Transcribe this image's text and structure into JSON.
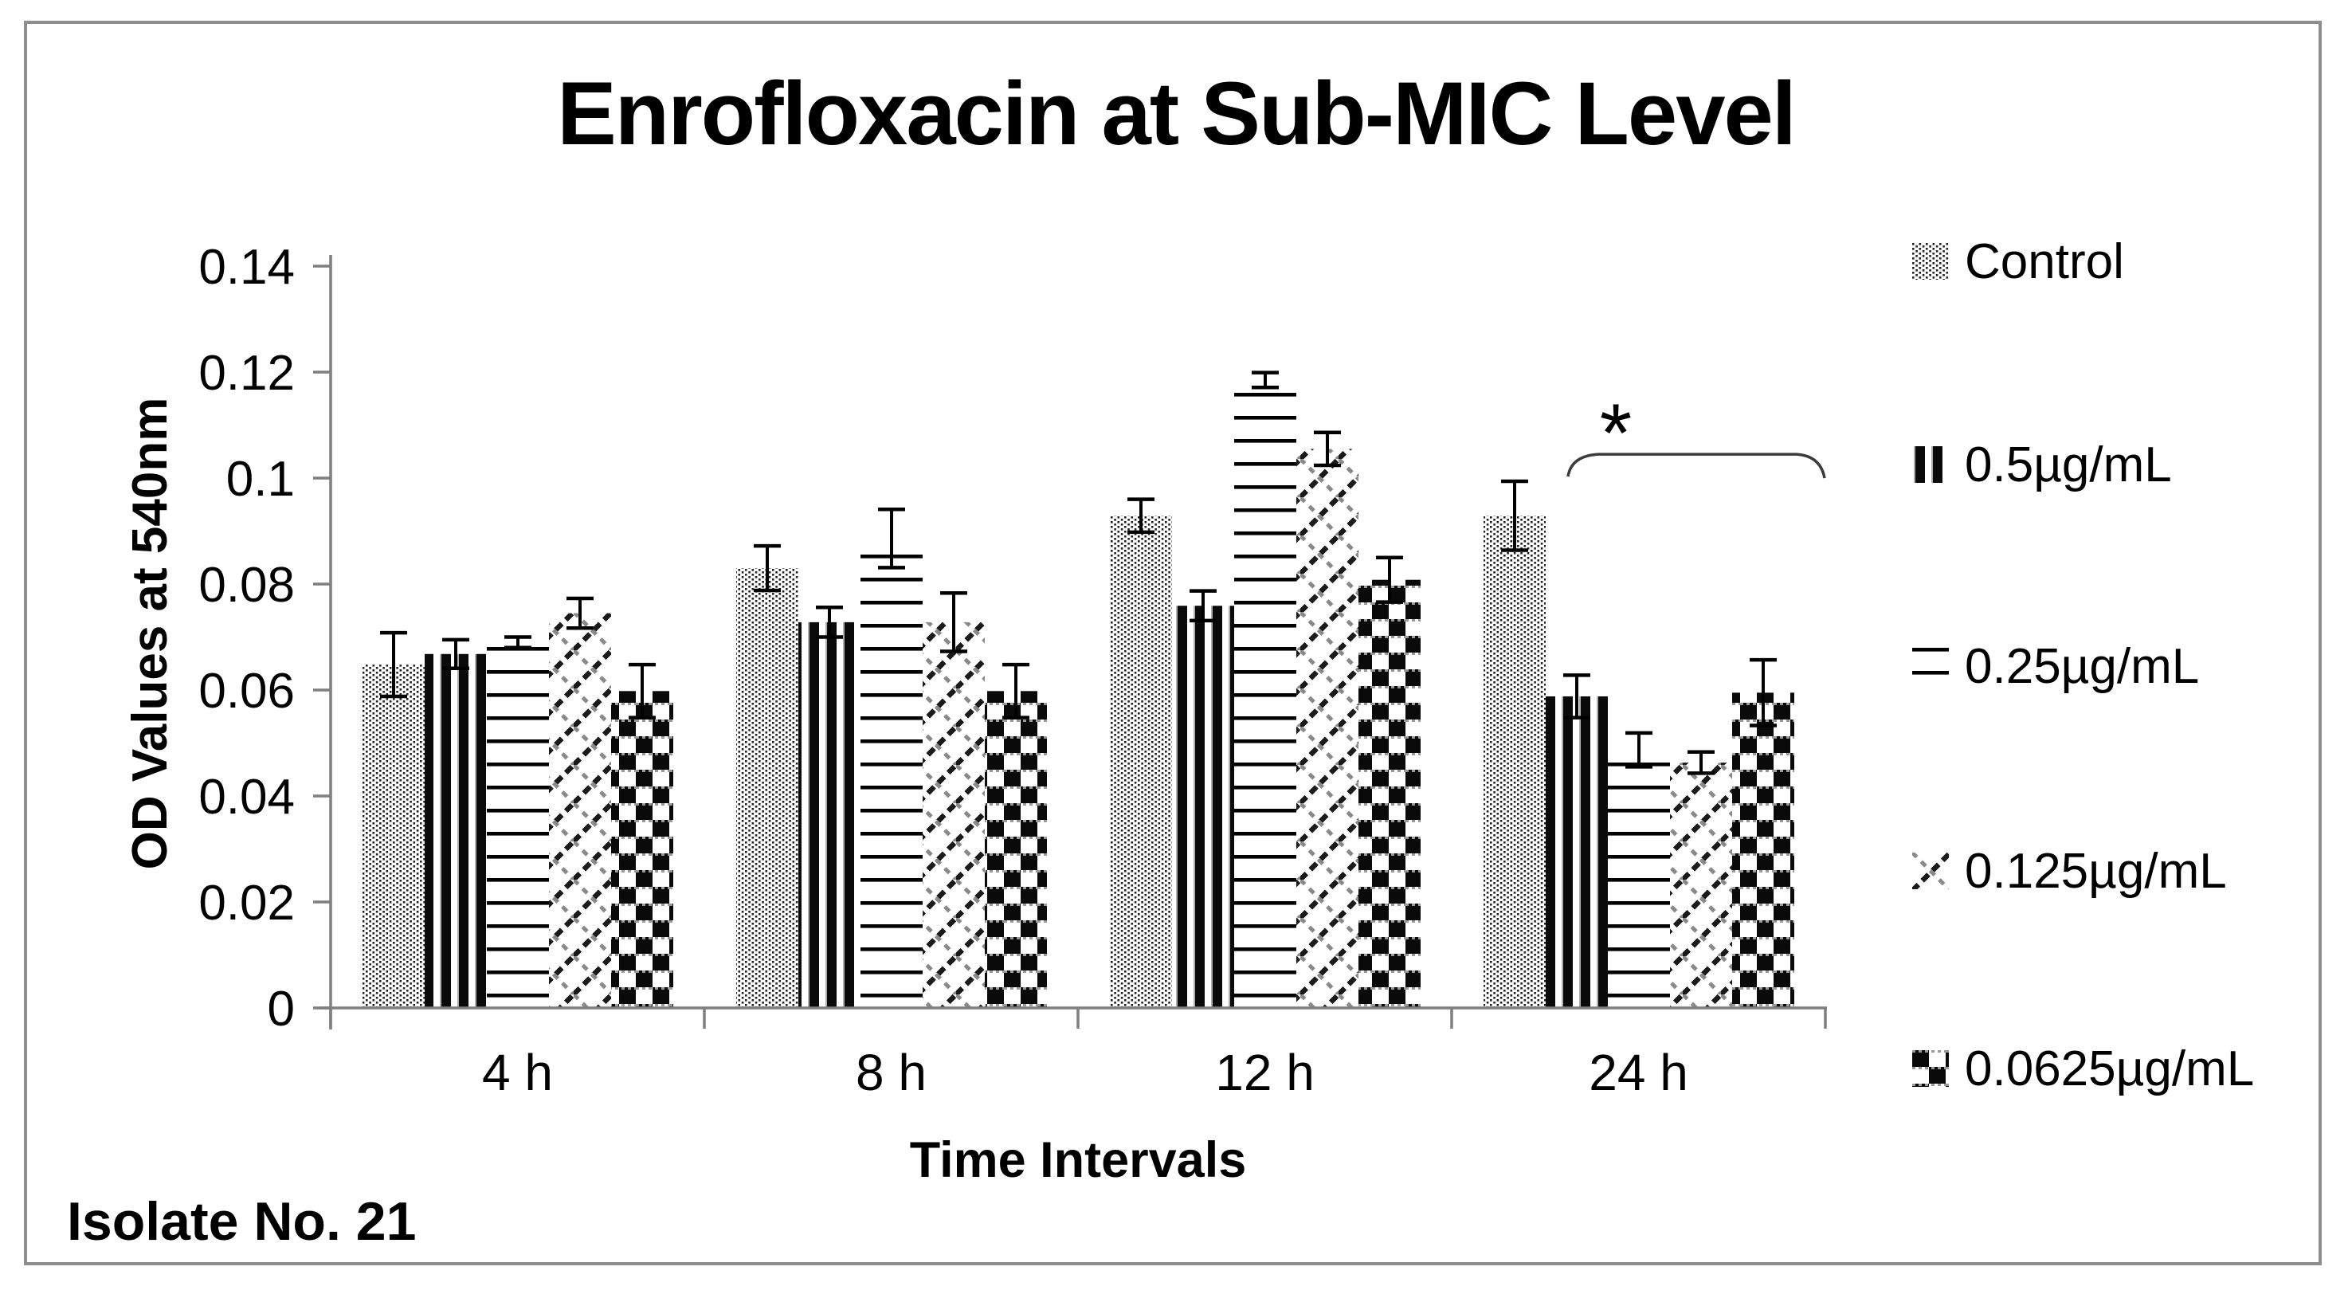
{
  "title": "Enrofloxacin at Sub-MIC Level",
  "footer": "Isolate No. 21",
  "frame": {
    "border_color": "#8d8d8d",
    "background": "#ffffff"
  },
  "axis_color": "#7f7f7f",
  "error_bar_color": "#000000",
  "chart_data": {
    "type": "bar",
    "title": "Enrofloxacin at Sub-MIC Level",
    "xlabel": "Time Intervals",
    "ylabel": "OD  Values at 540nm",
    "categories": [
      "4 h",
      "8 h",
      "12 h",
      "24 h"
    ],
    "y_tick_labels": [
      "0",
      "0.02",
      "0.04",
      "0.06",
      "0.08",
      "0.1",
      "0.12",
      "0.14"
    ],
    "ylim": [
      0,
      0.14
    ],
    "grid": false,
    "legend_position": "right",
    "series": [
      {
        "name": "Control",
        "pattern": "dots",
        "values": [
          0.0648,
          0.083,
          0.0929,
          0.0929
        ],
        "errors": [
          0.006,
          0.0042,
          0.0031,
          0.0065
        ]
      },
      {
        "name": "0.5µg/mL",
        "pattern": "vertical-stripes",
        "values": [
          0.0668,
          0.0728,
          0.0759,
          0.0588
        ],
        "errors": [
          0.0027,
          0.0028,
          0.0028,
          0.004
        ]
      },
      {
        "name": "0.25µg/mL",
        "pattern": "horizontal-lines",
        "values": [
          0.069,
          0.0886,
          0.1185,
          0.0487
        ],
        "errors": [
          0.001,
          0.0055,
          0.0014,
          0.0032
        ]
      },
      {
        "name": "0.125µg/mL",
        "pattern": "diagonal-weave",
        "values": [
          0.0745,
          0.0728,
          0.1055,
          0.0463
        ],
        "errors": [
          0.0028,
          0.0055,
          0.0031,
          0.002
        ]
      },
      {
        "name": "0.0625µg/mL",
        "pattern": "checkerboard",
        "values": [
          0.0598,
          0.0598,
          0.0808,
          0.0595
        ],
        "errors": [
          0.005,
          0.005,
          0.0042,
          0.0062
        ]
      }
    ],
    "annotation": {
      "symbol": "*",
      "target_category": "24 h",
      "bracket_level": 0.1045,
      "description": "significance bracket spanning the 24 h group"
    }
  }
}
